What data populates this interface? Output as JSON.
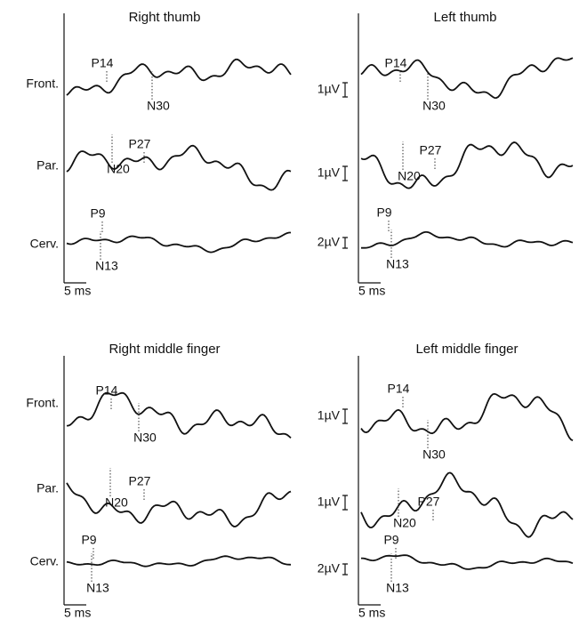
{
  "panels": [
    {
      "title": "Right thumb",
      "rows": [
        "Front.",
        "Par.",
        "Cerv."
      ],
      "peaks": [
        "P14",
        "N30",
        "P27",
        "N20",
        "P9",
        "N13"
      ],
      "scale": "5 ms"
    },
    {
      "title": "Left thumb",
      "amplitudes": [
        "1µV",
        "1µV",
        "2µV"
      ],
      "peaks": [
        "P14",
        "N30",
        "P27",
        "N20",
        "P9",
        "N13"
      ],
      "scale": "5 ms"
    },
    {
      "title": "Right middle finger",
      "rows": [
        "Front.",
        "Par.",
        "Cerv."
      ],
      "peaks": [
        "P14",
        "N30",
        "P27",
        "N20",
        "P9",
        "N13"
      ],
      "scale": "5 ms"
    },
    {
      "title": "Left middle finger",
      "amplitudes": [
        "1µV",
        "1µV",
        "2µV"
      ],
      "peaks": [
        "P14",
        "N30",
        "P27",
        "N20",
        "P9",
        "N13"
      ],
      "scale": "5 ms"
    }
  ]
}
